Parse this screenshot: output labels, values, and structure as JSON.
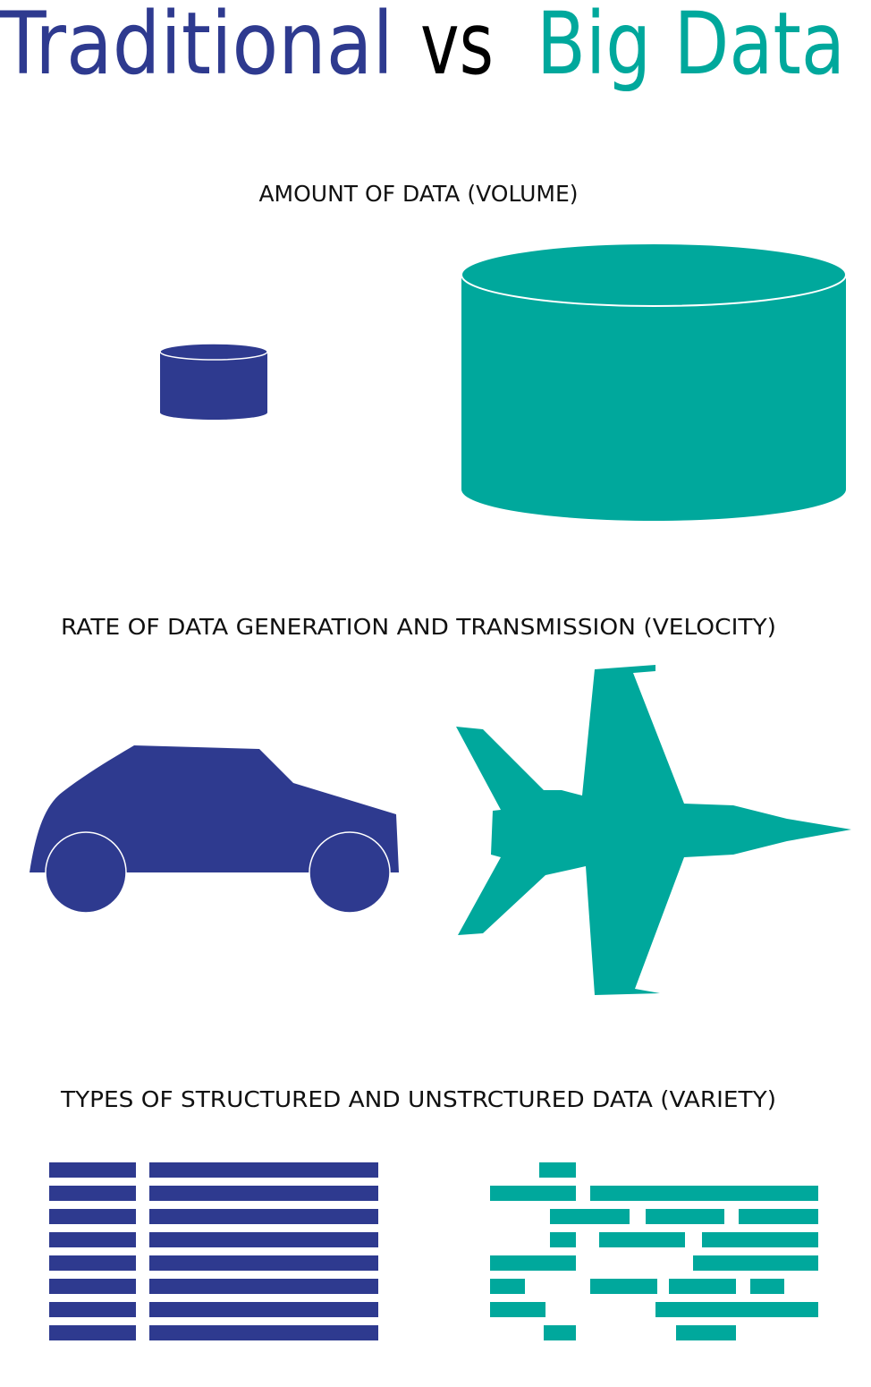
{
  "header": {
    "title_left": "Traditional",
    "title_mid": "vs",
    "title_right": "Big Data"
  },
  "sections": [
    {
      "heading": "AMOUNT OF DATA (VOLUME)"
    },
    {
      "heading": "RATE OF DATA GENERATION AND TRANSMISSION (VELOCITY)"
    },
    {
      "heading": "TYPES OF STRUCTURED AND UNSTRCTURED DATA (VARIETY)"
    }
  ]
}
